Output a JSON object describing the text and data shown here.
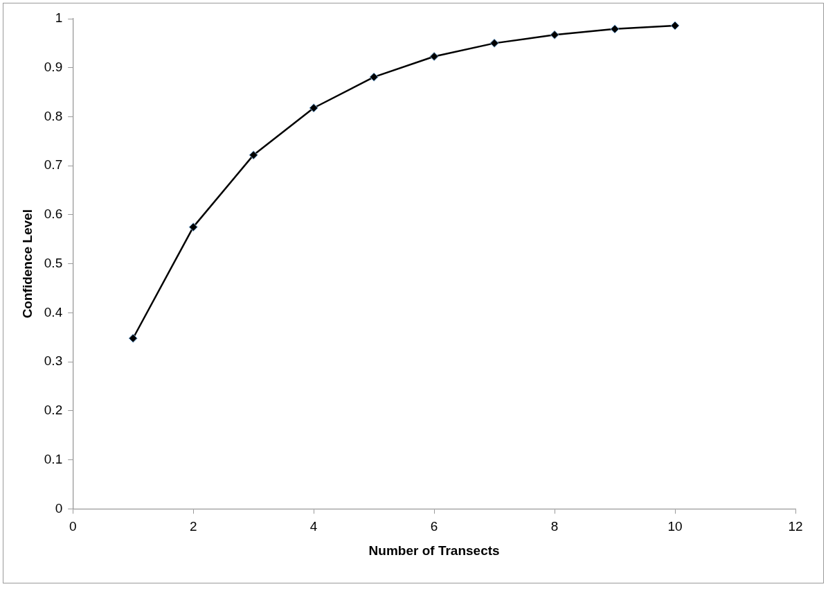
{
  "chart_data": {
    "type": "line",
    "xlabel": "Number of Transects",
    "ylabel": "Confidence Level",
    "x": [
      1,
      2,
      3,
      4,
      5,
      6,
      7,
      8,
      9,
      10
    ],
    "series": [
      {
        "color": "#000000",
        "values": [
          0.348,
          0.575,
          0.722,
          0.818,
          0.881,
          0.923,
          0.95,
          0.967,
          0.979,
          0.986
        ]
      }
    ],
    "xlim": [
      0,
      12
    ],
    "xticks": [
      0,
      2,
      4,
      6,
      8,
      10,
      12
    ],
    "ylim": [
      0,
      1
    ],
    "yticks": [
      0,
      0.1,
      0.2,
      0.3,
      0.4,
      0.5,
      0.6,
      0.7,
      0.8,
      0.9,
      1
    ],
    "grid": false,
    "legend": false,
    "marker": "diamond",
    "line_style": "solid"
  }
}
